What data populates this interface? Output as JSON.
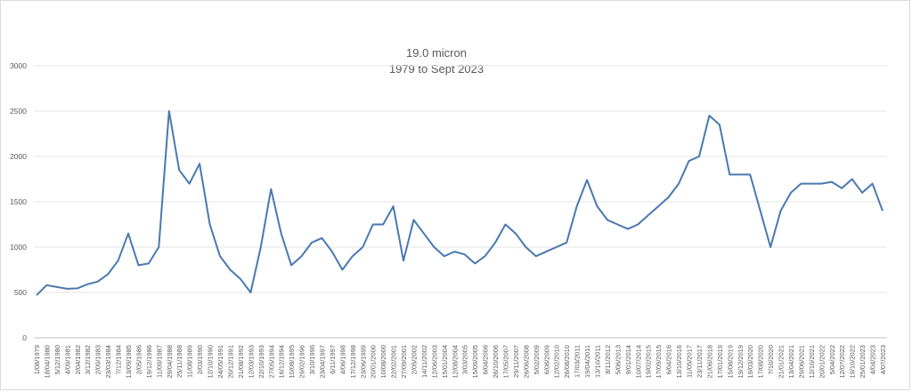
{
  "chart_data": {
    "type": "line",
    "title": "19.0 micron",
    "subtitle": "1979 to Sept 2023",
    "xlabel": "",
    "ylabel": "",
    "ylim": [
      0,
      3000
    ],
    "yticks": [
      "0",
      "500",
      "1000",
      "1500",
      "2000",
      "2500",
      "3000"
    ],
    "grid": true,
    "legend": "none",
    "line_color": "#4a78b0",
    "xticks": [
      "1/08/1979",
      "18/04/1980",
      "5/12/1980",
      "4/09/1981",
      "2/04/1982",
      "3/12/1982",
      "2/09/1983",
      "23/03/1984",
      "7/12/1984",
      "13/09/1985",
      "2/05/1986",
      "19/12/1986",
      "11/09/1987",
      "29/04/1988",
      "25/11/1988",
      "11/08/1989",
      "2/03/1990",
      "12/10/1990",
      "24/05/1991",
      "20/12/1991",
      "21/08/1992",
      "12/03/1993",
      "22/10/1993",
      "27/05/1994",
      "16/12/1994",
      "10/08/1995",
      "29/02/1996",
      "3/10/1996",
      "23/04/1997",
      "6/11/1997",
      "4/06/1998",
      "17/12/1998",
      "23/06/1999",
      "20/01/2000",
      "10/08/2000",
      "22/02/2001",
      "27/09/2001",
      "2/05/2002",
      "14/11/2002",
      "12/06/2003",
      "15/01/2004",
      "12/08/2004",
      "3/03/2005",
      "15/09/2005",
      "6/04/2006",
      "26/10/2006",
      "17/05/2007",
      "29/11/2007",
      "26/06/2008",
      "5/02/2009",
      "6/08/2009",
      "12/02/2010",
      "26/08/2010",
      "17/03/2011",
      "19/04/2011",
      "13/10/2011",
      "8/11/2012",
      "5/06/2013",
      "9/01/2014",
      "10/07/2014",
      "19/02/2015",
      "17/09/2015",
      "6/04/2016",
      "13/10/2016",
      "11/05/2017",
      "23/11/2017",
      "21/06/2018",
      "17/01/2019",
      "15/08/2019",
      "19/12/2019",
      "19/03/2020",
      "17/08/2020",
      "7/10/2020",
      "21/01/2021",
      "13/04/2021",
      "29/06/2021",
      "12/10/2021",
      "20/01/2022",
      "5/04/2022",
      "12/07/2022",
      "19/10/2022",
      "25/01/2023",
      "4/04/2023",
      "4/07/2023"
    ],
    "series": [
      {
        "x": [
          "1/08/1979",
          "18/04/1980",
          "5/12/1980",
          "4/09/1981",
          "2/04/1982",
          "3/12/1982",
          "2/09/1983",
          "23/03/1984",
          "7/12/1984",
          "13/09/1985",
          "2/05/1986",
          "19/12/1986",
          "11/09/1987",
          "29/04/1988",
          "25/11/1988",
          "11/08/1989",
          "2/03/1990",
          "12/10/1990",
          "24/05/1991",
          "20/12/1991",
          "21/08/1992",
          "12/03/1993",
          "22/10/1993",
          "27/05/1994",
          "16/12/1994",
          "10/08/1995",
          "29/02/1996",
          "3/10/1996",
          "23/04/1997",
          "6/11/1997",
          "4/06/1998",
          "17/12/1998",
          "23/06/1999",
          "20/01/2000",
          "10/08/2000",
          "22/02/2001",
          "27/09/2001",
          "2/05/2002",
          "14/11/2002",
          "12/06/2003",
          "15/01/2004",
          "12/08/2004",
          "3/03/2005",
          "15/09/2005",
          "6/04/2006",
          "26/10/2006",
          "17/05/2007",
          "29/11/2007",
          "26/06/2008",
          "5/02/2009",
          "6/08/2009",
          "12/02/2010",
          "26/08/2010",
          "17/03/2011",
          "19/04/2011",
          "13/10/2011",
          "8/11/2012",
          "5/06/2013",
          "9/01/2014",
          "10/07/2014",
          "19/02/2015",
          "17/09/2015",
          "6/04/2016",
          "13/10/2016",
          "11/05/2017",
          "23/11/2017",
          "21/06/2018",
          "17/01/2019",
          "15/08/2019",
          "19/12/2019",
          "19/03/2020",
          "17/08/2020",
          "7/10/2020",
          "21/01/2021",
          "13/04/2021",
          "29/06/2021",
          "12/10/2021",
          "20/01/2022",
          "5/04/2022",
          "12/07/2022",
          "19/10/2022",
          "25/01/2023",
          "4/04/2023",
          "4/07/2023"
        ],
        "y": [
          470,
          580,
          560,
          540,
          545,
          590,
          620,
          700,
          850,
          1150,
          800,
          820,
          1000,
          2500,
          1850,
          1700,
          1920,
          1250,
          900,
          750,
          650,
          500,
          1000,
          1640,
          1150,
          800,
          900,
          1050,
          1100,
          950,
          750,
          900,
          1000,
          1250,
          1250,
          1450,
          850,
          1300,
          1150,
          1000,
          900,
          950,
          920,
          820,
          900,
          1050,
          1250,
          1150,
          1000,
          900,
          950,
          1000,
          1050,
          1450,
          1740,
          1450,
          1300,
          1250,
          1200,
          1250,
          1350,
          1450,
          1550,
          1700,
          1950,
          2000,
          2450,
          2350,
          1800,
          1800,
          1800,
          1400,
          1000,
          1400,
          1600,
          1700,
          1700,
          1700,
          1720,
          1650,
          1750,
          1600,
          1700,
          1400
        ]
      }
    ]
  }
}
